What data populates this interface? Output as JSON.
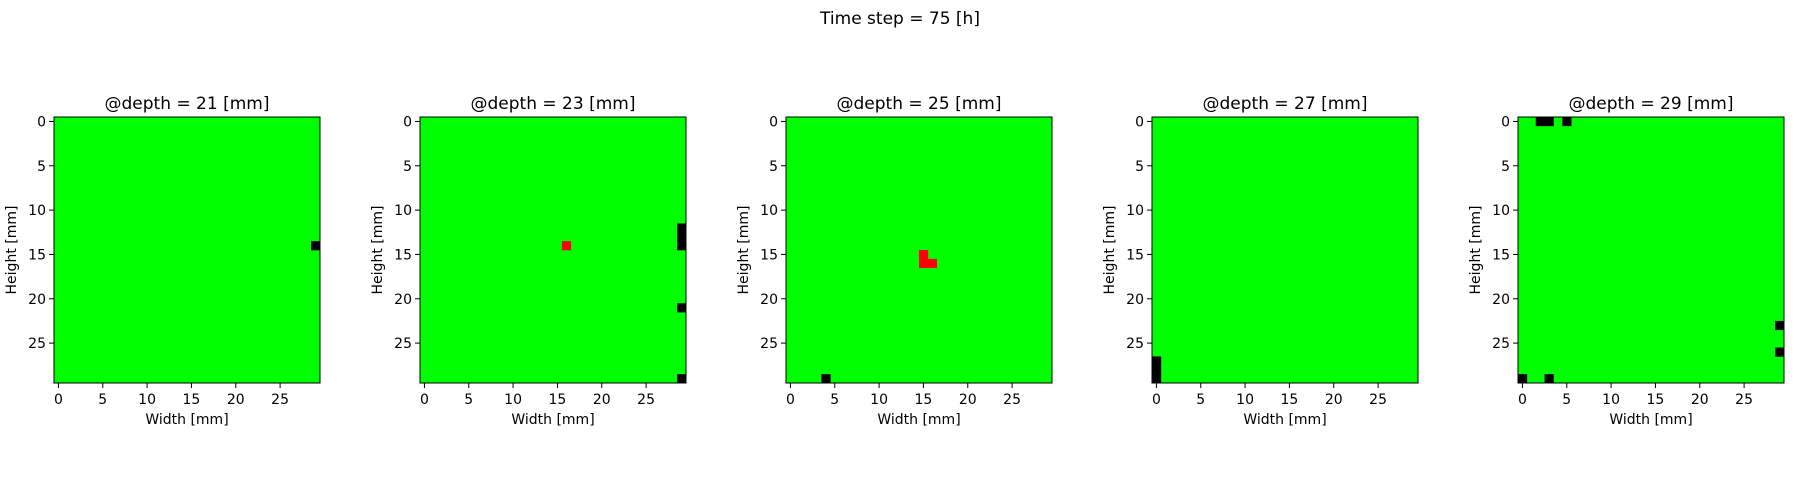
{
  "figure": {
    "suptitle": "Time step = 75 [h]"
  },
  "chart_data": [
    {
      "type": "heatmap",
      "title": "@depth = 21 [mm]",
      "xlabel": "Width [mm]",
      "ylabel": "Height [mm]",
      "grid_size": [
        30,
        30
      ],
      "xlim": [
        -0.5,
        29.5
      ],
      "ylim": [
        29.5,
        -0.5
      ],
      "xticks": [
        0,
        5,
        10,
        15,
        20,
        25
      ],
      "yticks": [
        0,
        5,
        10,
        15,
        20,
        25
      ],
      "grid": false,
      "background_color": "#00ff00",
      "colors": {
        "black": "#000000",
        "red": "#ff0000"
      },
      "cells": [
        {
          "row": 14,
          "col": 29,
          "color": "black"
        }
      ]
    },
    {
      "type": "heatmap",
      "title": "@depth = 23 [mm]",
      "xlabel": "Width [mm]",
      "ylabel": "Height [mm]",
      "grid_size": [
        30,
        30
      ],
      "xlim": [
        -0.5,
        29.5
      ],
      "ylim": [
        29.5,
        -0.5
      ],
      "xticks": [
        0,
        5,
        10,
        15,
        20,
        25
      ],
      "yticks": [
        0,
        5,
        10,
        15,
        20,
        25
      ],
      "grid": false,
      "background_color": "#00ff00",
      "colors": {
        "black": "#000000",
        "red": "#ff0000"
      },
      "cells": [
        {
          "row": 14,
          "col": 16,
          "color": "red"
        },
        {
          "row": 12,
          "col": 29,
          "color": "black"
        },
        {
          "row": 13,
          "col": 29,
          "color": "black"
        },
        {
          "row": 14,
          "col": 29,
          "color": "black"
        },
        {
          "row": 21,
          "col": 29,
          "color": "black"
        },
        {
          "row": 29,
          "col": 29,
          "color": "black"
        }
      ]
    },
    {
      "type": "heatmap",
      "title": "@depth = 25 [mm]",
      "xlabel": "Width [mm]",
      "ylabel": "Height [mm]",
      "grid_size": [
        30,
        30
      ],
      "xlim": [
        -0.5,
        29.5
      ],
      "ylim": [
        29.5,
        -0.5
      ],
      "xticks": [
        0,
        5,
        10,
        15,
        20,
        25
      ],
      "yticks": [
        0,
        5,
        10,
        15,
        20,
        25
      ],
      "grid": false,
      "background_color": "#00ff00",
      "colors": {
        "black": "#000000",
        "red": "#ff0000"
      },
      "cells": [
        {
          "row": 15,
          "col": 15,
          "color": "red"
        },
        {
          "row": 16,
          "col": 15,
          "color": "red"
        },
        {
          "row": 16,
          "col": 16,
          "color": "red"
        },
        {
          "row": 29,
          "col": 4,
          "color": "black"
        }
      ]
    },
    {
      "type": "heatmap",
      "title": "@depth = 27 [mm]",
      "xlabel": "Width [mm]",
      "ylabel": "Height [mm]",
      "grid_size": [
        30,
        30
      ],
      "xlim": [
        -0.5,
        29.5
      ],
      "ylim": [
        29.5,
        -0.5
      ],
      "xticks": [
        0,
        5,
        10,
        15,
        20,
        25
      ],
      "yticks": [
        0,
        5,
        10,
        15,
        20,
        25
      ],
      "grid": false,
      "background_color": "#00ff00",
      "colors": {
        "black": "#000000",
        "red": "#ff0000"
      },
      "cells": [
        {
          "row": 27,
          "col": 0,
          "color": "black"
        },
        {
          "row": 28,
          "col": 0,
          "color": "black"
        },
        {
          "row": 29,
          "col": 0,
          "color": "black"
        }
      ]
    },
    {
      "type": "heatmap",
      "title": "@depth = 29 [mm]",
      "xlabel": "Width [mm]",
      "ylabel": "Height [mm]",
      "grid_size": [
        30,
        30
      ],
      "xlim": [
        -0.5,
        29.5
      ],
      "ylim": [
        29.5,
        -0.5
      ],
      "xticks": [
        0,
        5,
        10,
        15,
        20,
        25
      ],
      "yticks": [
        0,
        5,
        10,
        15,
        20,
        25
      ],
      "grid": false,
      "background_color": "#00ff00",
      "colors": {
        "black": "#000000",
        "red": "#ff0000"
      },
      "cells": [
        {
          "row": 0,
          "col": 2,
          "color": "black"
        },
        {
          "row": 0,
          "col": 3,
          "color": "black"
        },
        {
          "row": 0,
          "col": 5,
          "color": "black"
        },
        {
          "row": 23,
          "col": 29,
          "color": "black"
        },
        {
          "row": 26,
          "col": 29,
          "color": "black"
        },
        {
          "row": 29,
          "col": 0,
          "color": "black"
        },
        {
          "row": 29,
          "col": 3,
          "color": "black"
        }
      ]
    }
  ]
}
